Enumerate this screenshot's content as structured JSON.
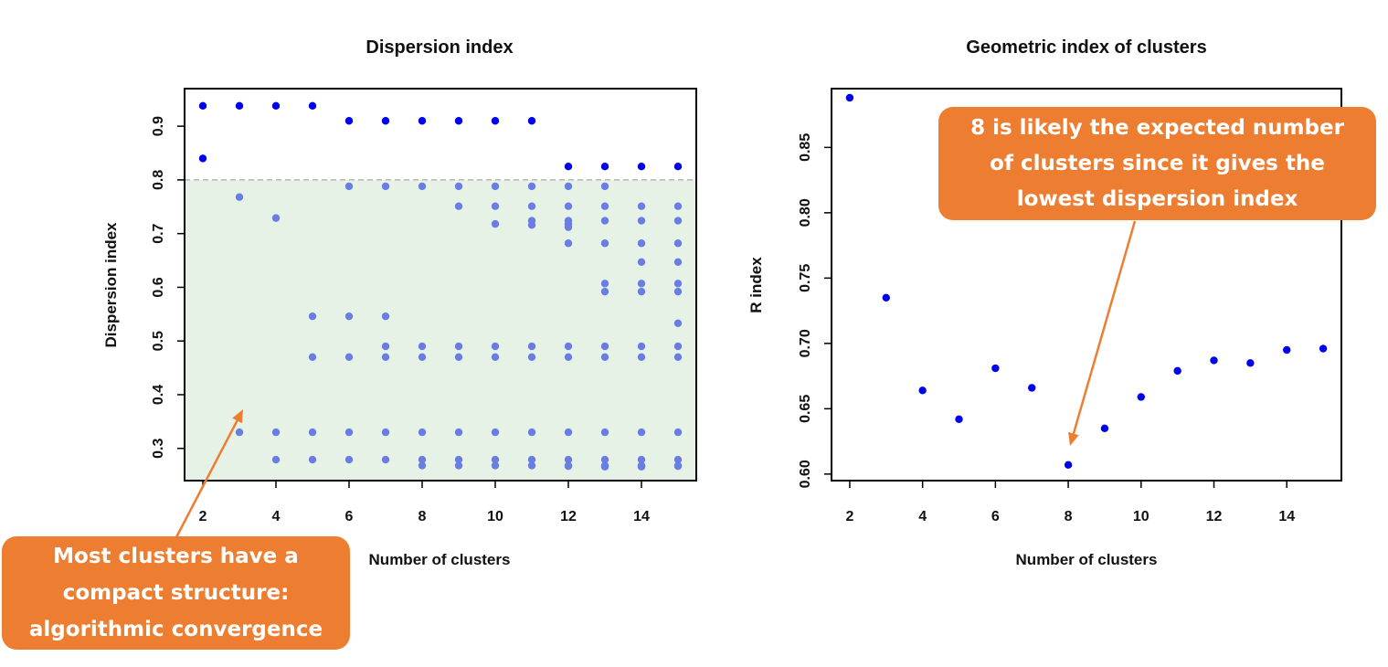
{
  "colors": {
    "point_dark": "#0000EE",
    "point_light": "#6A7DE0",
    "band_fill": "#E6F2E6",
    "threshold_line": "#B8B8B8",
    "callout_fill": "#ED7D31",
    "callout_text": "#FFFFFF",
    "arrow": "#ED7D31"
  },
  "chart_data": [
    {
      "type": "scatter",
      "title": "Dispersion index",
      "xlabel": "Number of clusters",
      "ylabel": "Dispersion index",
      "xlim": [
        1.5,
        15.5
      ],
      "ylim": [
        0.24,
        0.97
      ],
      "xticks": [
        2,
        4,
        6,
        8,
        10,
        12,
        14
      ],
      "yticks": [
        0.3,
        0.4,
        0.5,
        0.6,
        0.7,
        0.8,
        0.9
      ],
      "threshold": 0.8,
      "grid": false,
      "series": [
        {
          "x": [
            2,
            3,
            4,
            5,
            6,
            7,
            8,
            9,
            10,
            11,
            12,
            13,
            14,
            15,
            2
          ],
          "y": [
            0.938,
            0.938,
            0.938,
            0.938,
            0.91,
            0.91,
            0.91,
            0.91,
            0.91,
            0.91,
            0.825,
            0.825,
            0.825,
            0.825,
            0.84
          ]
        },
        {
          "x": [
            3,
            3,
            4,
            4,
            4,
            5,
            5,
            5,
            5,
            6,
            6,
            6,
            6,
            6,
            7,
            7,
            7,
            7,
            7,
            7,
            8,
            8,
            8,
            8,
            8,
            8,
            9,
            9,
            9,
            9,
            9,
            9,
            9,
            10,
            10,
            10,
            10,
            10,
            10,
            10,
            10,
            11,
            11,
            11,
            11,
            11,
            11,
            11,
            11,
            11,
            12,
            12,
            12,
            12,
            12,
            12,
            12,
            12,
            12,
            12,
            12,
            12,
            13,
            13,
            13,
            13,
            13,
            13,
            13,
            13,
            13,
            13,
            13,
            13,
            13,
            14,
            14,
            14,
            14,
            14,
            14,
            14,
            14,
            14,
            14,
            14,
            14,
            14,
            15,
            15,
            15,
            15,
            15,
            15,
            15,
            15,
            15,
            15,
            15,
            15,
            15
          ],
          "y": [
            0.768,
            0.33,
            0.729,
            0.33,
            0.279,
            0.546,
            0.47,
            0.33,
            0.279,
            0.788,
            0.546,
            0.47,
            0.33,
            0.279,
            0.788,
            0.546,
            0.49,
            0.47,
            0.33,
            0.279,
            0.788,
            0.49,
            0.47,
            0.33,
            0.279,
            0.268,
            0.788,
            0.751,
            0.49,
            0.47,
            0.33,
            0.279,
            0.268,
            0.788,
            0.751,
            0.718,
            0.49,
            0.47,
            0.33,
            0.279,
            0.268,
            0.788,
            0.751,
            0.724,
            0.716,
            0.49,
            0.47,
            0.33,
            0.279,
            0.268,
            0.788,
            0.751,
            0.724,
            0.718,
            0.712,
            0.682,
            0.49,
            0.47,
            0.33,
            0.279,
            0.268,
            0.267,
            0.788,
            0.751,
            0.724,
            0.682,
            0.607,
            0.592,
            0.49,
            0.47,
            0.33,
            0.279,
            0.268,
            0.267,
            0.266,
            0.751,
            0.724,
            0.682,
            0.647,
            0.607,
            0.592,
            0.49,
            0.47,
            0.33,
            0.279,
            0.268,
            0.267,
            0.266,
            0.751,
            0.724,
            0.682,
            0.647,
            0.607,
            0.592,
            0.533,
            0.49,
            0.47,
            0.33,
            0.279,
            0.268,
            0.267
          ]
        }
      ]
    },
    {
      "type": "scatter",
      "title": "Geometric index of clusters",
      "xlabel": "Number of clusters",
      "ylabel": "R index",
      "xlim": [
        1.5,
        15.5
      ],
      "ylim": [
        0.595,
        0.895
      ],
      "xticks": [
        2,
        4,
        6,
        8,
        10,
        12,
        14
      ],
      "yticks": [
        0.6,
        0.65,
        0.7,
        0.75,
        0.8,
        0.85
      ],
      "ytick_labels": [
        "0.60",
        "0.65",
        "0.70",
        "0.75",
        "0.80",
        "0.85"
      ],
      "grid": false,
      "series": [
        {
          "x": [
            2,
            3,
            4,
            5,
            6,
            7,
            8,
            9,
            10,
            11,
            12,
            13,
            14,
            15
          ],
          "y": [
            0.888,
            0.735,
            0.664,
            0.642,
            0.681,
            0.666,
            0.607,
            0.635,
            0.659,
            0.679,
            0.687,
            0.685,
            0.695,
            0.696
          ]
        }
      ]
    }
  ],
  "annotations": {
    "left": [
      "Most clusters have a",
      "compact structure:",
      "algorithmic convergence"
    ],
    "right": [
      "8 is likely the expected number",
      "of clusters since it gives the",
      "lowest dispersion index"
    ]
  }
}
